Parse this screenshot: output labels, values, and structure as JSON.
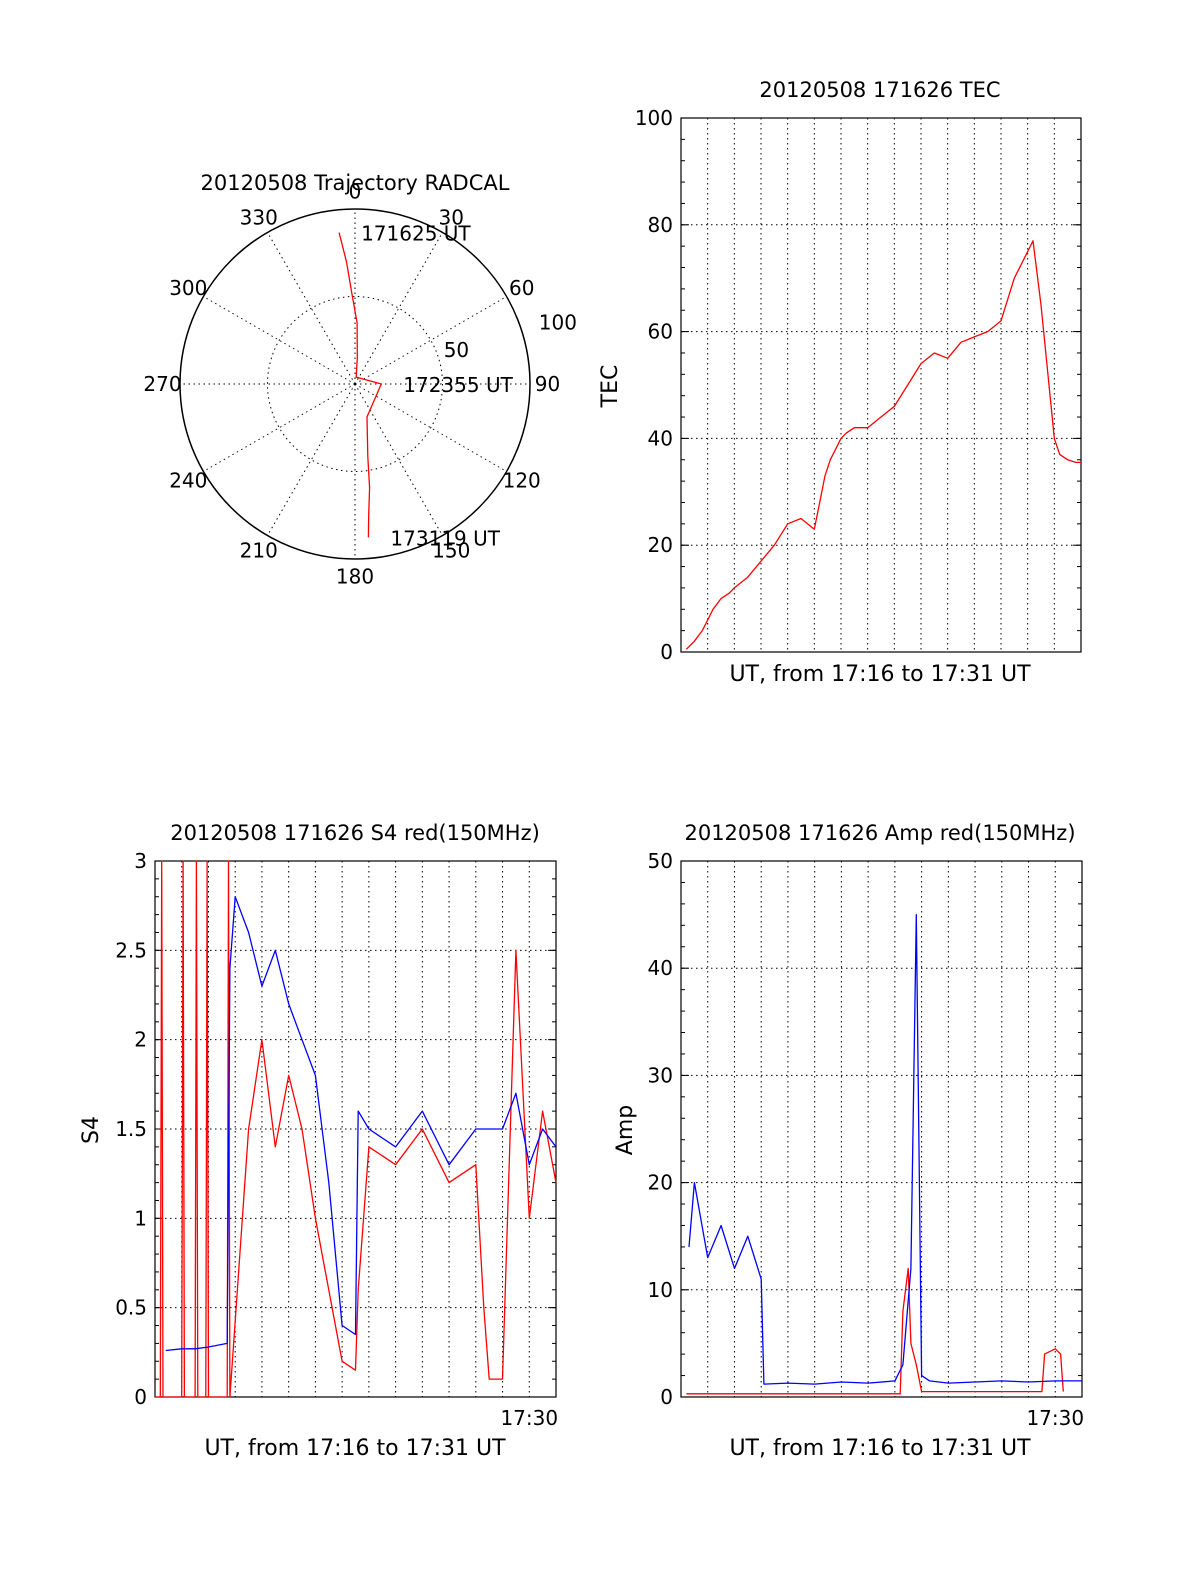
{
  "chart_data": [
    {
      "id": "trajectory",
      "type": "scatter",
      "subtype": "polar",
      "title": "20120508 Trajectory RADCAL",
      "angle_labels": [
        "0",
        "30",
        "60",
        "90",
        "120",
        "150",
        "180",
        "210",
        "240",
        "270",
        "300",
        "330"
      ],
      "ring_labels": [
        "50",
        "100"
      ],
      "ring_values": [
        50,
        100
      ],
      "radius_max": 100,
      "grid": true,
      "series": [
        {
          "color": "#ff0000",
          "points": [
            [
              354,
              87
            ],
            [
              356,
              70
            ],
            [
              358,
              52
            ],
            [
              2,
              35
            ],
            [
              5,
              15
            ],
            [
              10,
              4
            ],
            [
              90,
              15
            ],
            [
              160,
              20
            ],
            [
              170,
              42
            ],
            [
              172,
              60
            ],
            [
              174,
              75
            ],
            [
              175,
              88
            ]
          ]
        }
      ],
      "annotations": [
        {
          "text": "171625 UT",
          "azimuth": 354,
          "radius": 87
        },
        {
          "text": "172355 UT",
          "azimuth": 90,
          "radius": 15
        },
        {
          "text": "173119 UT",
          "azimuth": 175,
          "radius": 88
        }
      ]
    },
    {
      "id": "tec",
      "type": "line",
      "title": "20120508 171626 TEC",
      "xlabel": "UT, from 17:16 to 17:31 UT",
      "ylabel": "TEC",
      "xlim": [
        0,
        15
      ],
      "ylim": [
        0,
        100
      ],
      "yticks": [
        0,
        20,
        40,
        60,
        80,
        100
      ],
      "xtick_labels": [],
      "grid": true,
      "series": [
        {
          "color": "#ff0000",
          "x": [
            0.2,
            0.5,
            0.8,
            1.0,
            1.2,
            1.5,
            1.8,
            2.0,
            2.5,
            3.0,
            3.5,
            4.0,
            4.5,
            5.0,
            5.2,
            5.4,
            5.6,
            5.8,
            6.0,
            6.2,
            6.5,
            7.0,
            7.5,
            8.0,
            8.5,
            9.0,
            9.5,
            10.0,
            10.5,
            11.0,
            11.5,
            12.0,
            12.5,
            13.0,
            13.2,
            13.5,
            13.8,
            14.0,
            14.2,
            14.5,
            14.8,
            15.0
          ],
          "y": [
            0.5,
            2,
            4,
            6,
            8,
            10,
            11,
            12,
            14,
            17,
            20,
            24,
            25,
            23,
            28,
            33,
            36,
            38,
            40,
            41,
            42,
            42,
            44,
            46,
            50,
            54,
            56,
            55,
            58,
            59,
            60,
            62,
            70,
            75,
            77,
            65,
            50,
            40,
            37,
            36,
            35.5,
            35.5
          ]
        }
      ]
    },
    {
      "id": "s4",
      "type": "line",
      "title": "20120508 171626 S4 red(150MHz)",
      "xlabel": "UT, from 17:16 to 17:31 UT",
      "ylabel": "S4",
      "xlim": [
        0,
        15
      ],
      "ylim": [
        0,
        3
      ],
      "yticks": [
        "0",
        "0.5",
        "1",
        "1.5",
        "2",
        "2.5",
        "3"
      ],
      "xtick_labels": [
        {
          "value": 14,
          "label": "17:30"
        }
      ],
      "grid": true,
      "series": [
        {
          "color": "#ff0000",
          "description_values": "noisy, frequent spikes to 3",
          "x": [
            0,
            0.2,
            0.25,
            0.3,
            1.0,
            1.05,
            1.1,
            1.5,
            1.55,
            1.6,
            1.9,
            1.95,
            2.0,
            2.7,
            2.75,
            2.8,
            3.5,
            4.0,
            4.5,
            5.0,
            5.5,
            6.0,
            7.0,
            7.5,
            7.6,
            8.0,
            9.0,
            10.0,
            11.0,
            12.0,
            12.3,
            12.5,
            13.0,
            13.5,
            14.0,
            14.5,
            15.0
          ],
          "y": [
            0,
            0,
            3,
            0,
            0,
            3,
            0,
            0,
            3,
            0,
            0,
            3,
            0,
            0,
            3,
            0,
            1.5,
            2.0,
            1.4,
            1.8,
            1.5,
            1.0,
            0.2,
            0.15,
            0.6,
            1.4,
            1.3,
            1.5,
            1.2,
            1.3,
            0.5,
            0.1,
            0.1,
            2.5,
            1.0,
            1.6,
            1.2
          ]
        },
        {
          "color": "#0000ff",
          "x": [
            0.4,
            1.0,
            1.5,
            2.0,
            2.7,
            2.8,
            3.0,
            3.5,
            4.0,
            4.5,
            5.0,
            5.5,
            6.0,
            6.5,
            7.0,
            7.5,
            7.6,
            8.0,
            9.0,
            10.0,
            11.0,
            12.0,
            13.0,
            13.5,
            14.0,
            14.5,
            15.0
          ],
          "y": [
            0.26,
            0.27,
            0.27,
            0.28,
            0.3,
            2.4,
            2.8,
            2.6,
            2.3,
            2.5,
            2.2,
            2.0,
            1.8,
            1.2,
            0.4,
            0.35,
            1.6,
            1.5,
            1.4,
            1.6,
            1.3,
            1.5,
            1.5,
            1.7,
            1.3,
            1.5,
            1.4
          ]
        }
      ]
    },
    {
      "id": "amp",
      "type": "line",
      "title": "20120508 171626 Amp red(150MHz)",
      "xlabel": "UT, from 17:16 to 17:31 UT",
      "ylabel": "Amp",
      "xlim": [
        0,
        15
      ],
      "ylim": [
        0,
        50
      ],
      "yticks": [
        0,
        10,
        20,
        30,
        40,
        50
      ],
      "xtick_labels": [
        {
          "value": 14,
          "label": "17:30"
        }
      ],
      "grid": true,
      "series": [
        {
          "color": "#ff0000",
          "x": [
            0.2,
            1.0,
            2.0,
            3.0,
            8.2,
            8.3,
            8.5,
            8.6,
            8.8,
            9.0,
            13.5,
            13.6,
            14.0,
            14.2,
            14.3
          ],
          "y": [
            0.3,
            0.3,
            0.3,
            0.3,
            0.3,
            8,
            12,
            5,
            3,
            0.5,
            0.5,
            4,
            4.5,
            4,
            0.5
          ]
        },
        {
          "color": "#0000ff",
          "x": [
            0.3,
            0.5,
            1.0,
            1.5,
            2.0,
            2.5,
            3.0,
            3.1,
            4.0,
            5.0,
            6.0,
            7.0,
            8.0,
            8.3,
            8.6,
            8.8,
            9.0,
            9.3,
            10.0,
            11.0,
            12.0,
            13.0,
            14.0,
            15.0
          ],
          "y": [
            14,
            20,
            13,
            16,
            12,
            15,
            11,
            1.2,
            1.3,
            1.2,
            1.4,
            1.3,
            1.5,
            3,
            12,
            45,
            2,
            1.5,
            1.3,
            1.4,
            1.5,
            1.4,
            1.5,
            1.5
          ]
        }
      ]
    }
  ]
}
